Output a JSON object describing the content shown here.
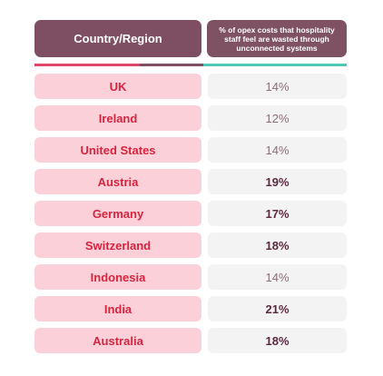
{
  "colors": {
    "header_bg": "#7e4e63",
    "country_bg": "#fbd0d8",
    "country_text": "#d6243f",
    "value_bg": "#f3f3f3",
    "value_text": "#8a6e78",
    "value_text_bold": "#5b2a40",
    "rule_left": "#e0466a",
    "rule_mid": "#7e4e63",
    "rule_right": "#4fc8b8"
  },
  "chart_data": {
    "type": "table",
    "columns": [
      "Country/Region",
      "% of opex costs that hospitality staff feel are wasted through unconnected systems"
    ],
    "rows": [
      {
        "country": "UK",
        "value": "14%",
        "bold": false
      },
      {
        "country": "Ireland",
        "value": "12%",
        "bold": false
      },
      {
        "country": "United States",
        "value": "14%",
        "bold": false
      },
      {
        "country": "Austria",
        "value": "19%",
        "bold": true
      },
      {
        "country": "Germany",
        "value": "17%",
        "bold": true
      },
      {
        "country": "Switzerland",
        "value": "18%",
        "bold": true
      },
      {
        "country": "Indonesia",
        "value": "14%",
        "bold": false
      },
      {
        "country": "India",
        "value": "21%",
        "bold": true
      },
      {
        "country": "Australia",
        "value": "18%",
        "bold": true
      }
    ]
  }
}
